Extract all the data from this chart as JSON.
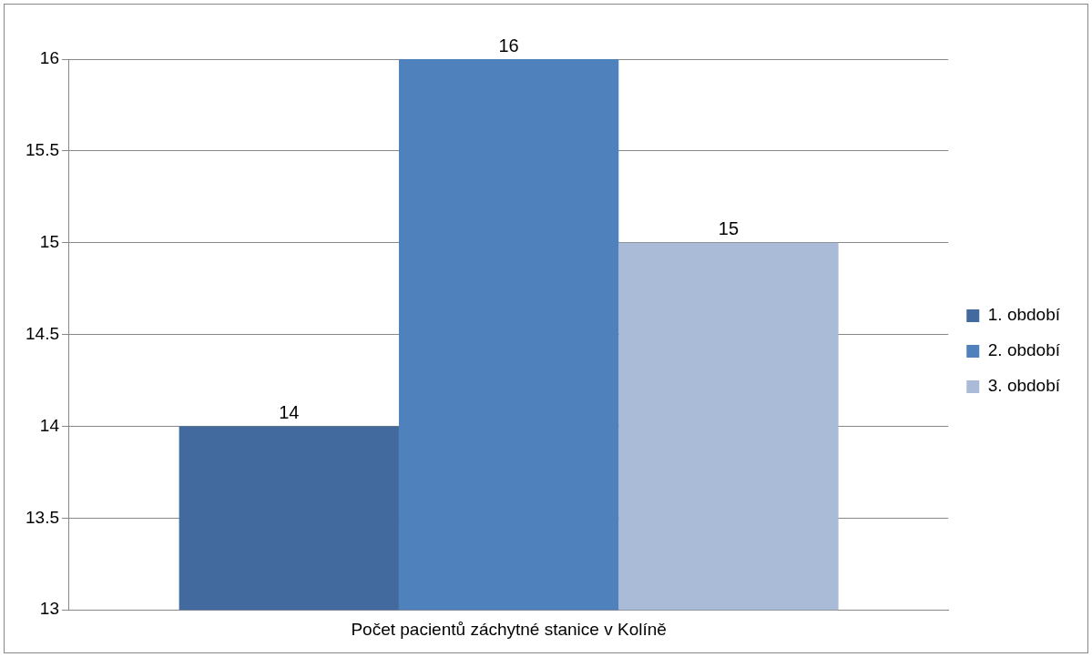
{
  "chart_data": {
    "type": "bar",
    "categories": [
      "Počet pacientů záchytné stanice v Kolíně"
    ],
    "series": [
      {
        "name": "1. období",
        "color": "#426a9e",
        "values": [
          14
        ]
      },
      {
        "name": "2. období",
        "color": "#4f81bd",
        "values": [
          16
        ]
      },
      {
        "name": "3. období",
        "color": "#aabbd8",
        "values": [
          15
        ]
      }
    ],
    "ylim": [
      13,
      16
    ],
    "yticks": [
      13,
      13.5,
      14,
      14.5,
      15,
      15.5,
      16
    ],
    "grid": "y",
    "legend": "right",
    "data_labels": true
  }
}
